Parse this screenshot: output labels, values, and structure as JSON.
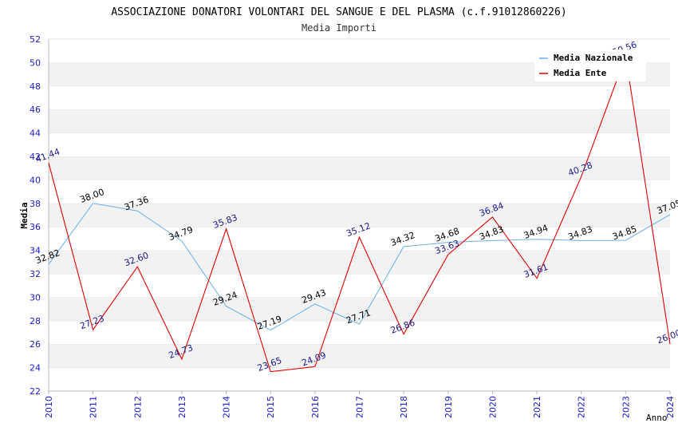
{
  "chart_data": {
    "type": "line",
    "title": "ASSOCIAZIONE DONATORI VOLONTARI DEL SANGUE E DEL PLASMA (c.f.91012860226)",
    "subtitle": "Media Importi",
    "xlabel": "Anno",
    "ylabel": "Media",
    "ylim": [
      22,
      52
    ],
    "yticks": [
      22,
      24,
      26,
      28,
      30,
      32,
      34,
      36,
      38,
      40,
      42,
      44,
      46,
      48,
      50,
      52
    ],
    "x": [
      "2010",
      "2011",
      "2012",
      "2013",
      "2014",
      "2015",
      "2016",
      "2017",
      "2018",
      "2019",
      "2020",
      "2021",
      "2022",
      "2023",
      "2024"
    ],
    "grid": "horizontal alternating bands",
    "legend_position": "top-right",
    "series": [
      {
        "name": "Media Nazionale",
        "color": "#6aaee8",
        "label_color": "#000000",
        "values": [
          32.82,
          38.0,
          37.36,
          34.79,
          29.24,
          27.19,
          29.43,
          27.71,
          34.32,
          34.68,
          34.83,
          34.94,
          34.83,
          34.85,
          37.05
        ]
      },
      {
        "name": "Media Ente",
        "color": "#e00000",
        "label_color": "#1a1a8c",
        "values": [
          41.44,
          27.23,
          32.6,
          24.73,
          35.83,
          23.65,
          24.09,
          35.12,
          26.86,
          33.63,
          36.84,
          31.61,
          40.28,
          50.56,
          26.0
        ]
      }
    ]
  }
}
